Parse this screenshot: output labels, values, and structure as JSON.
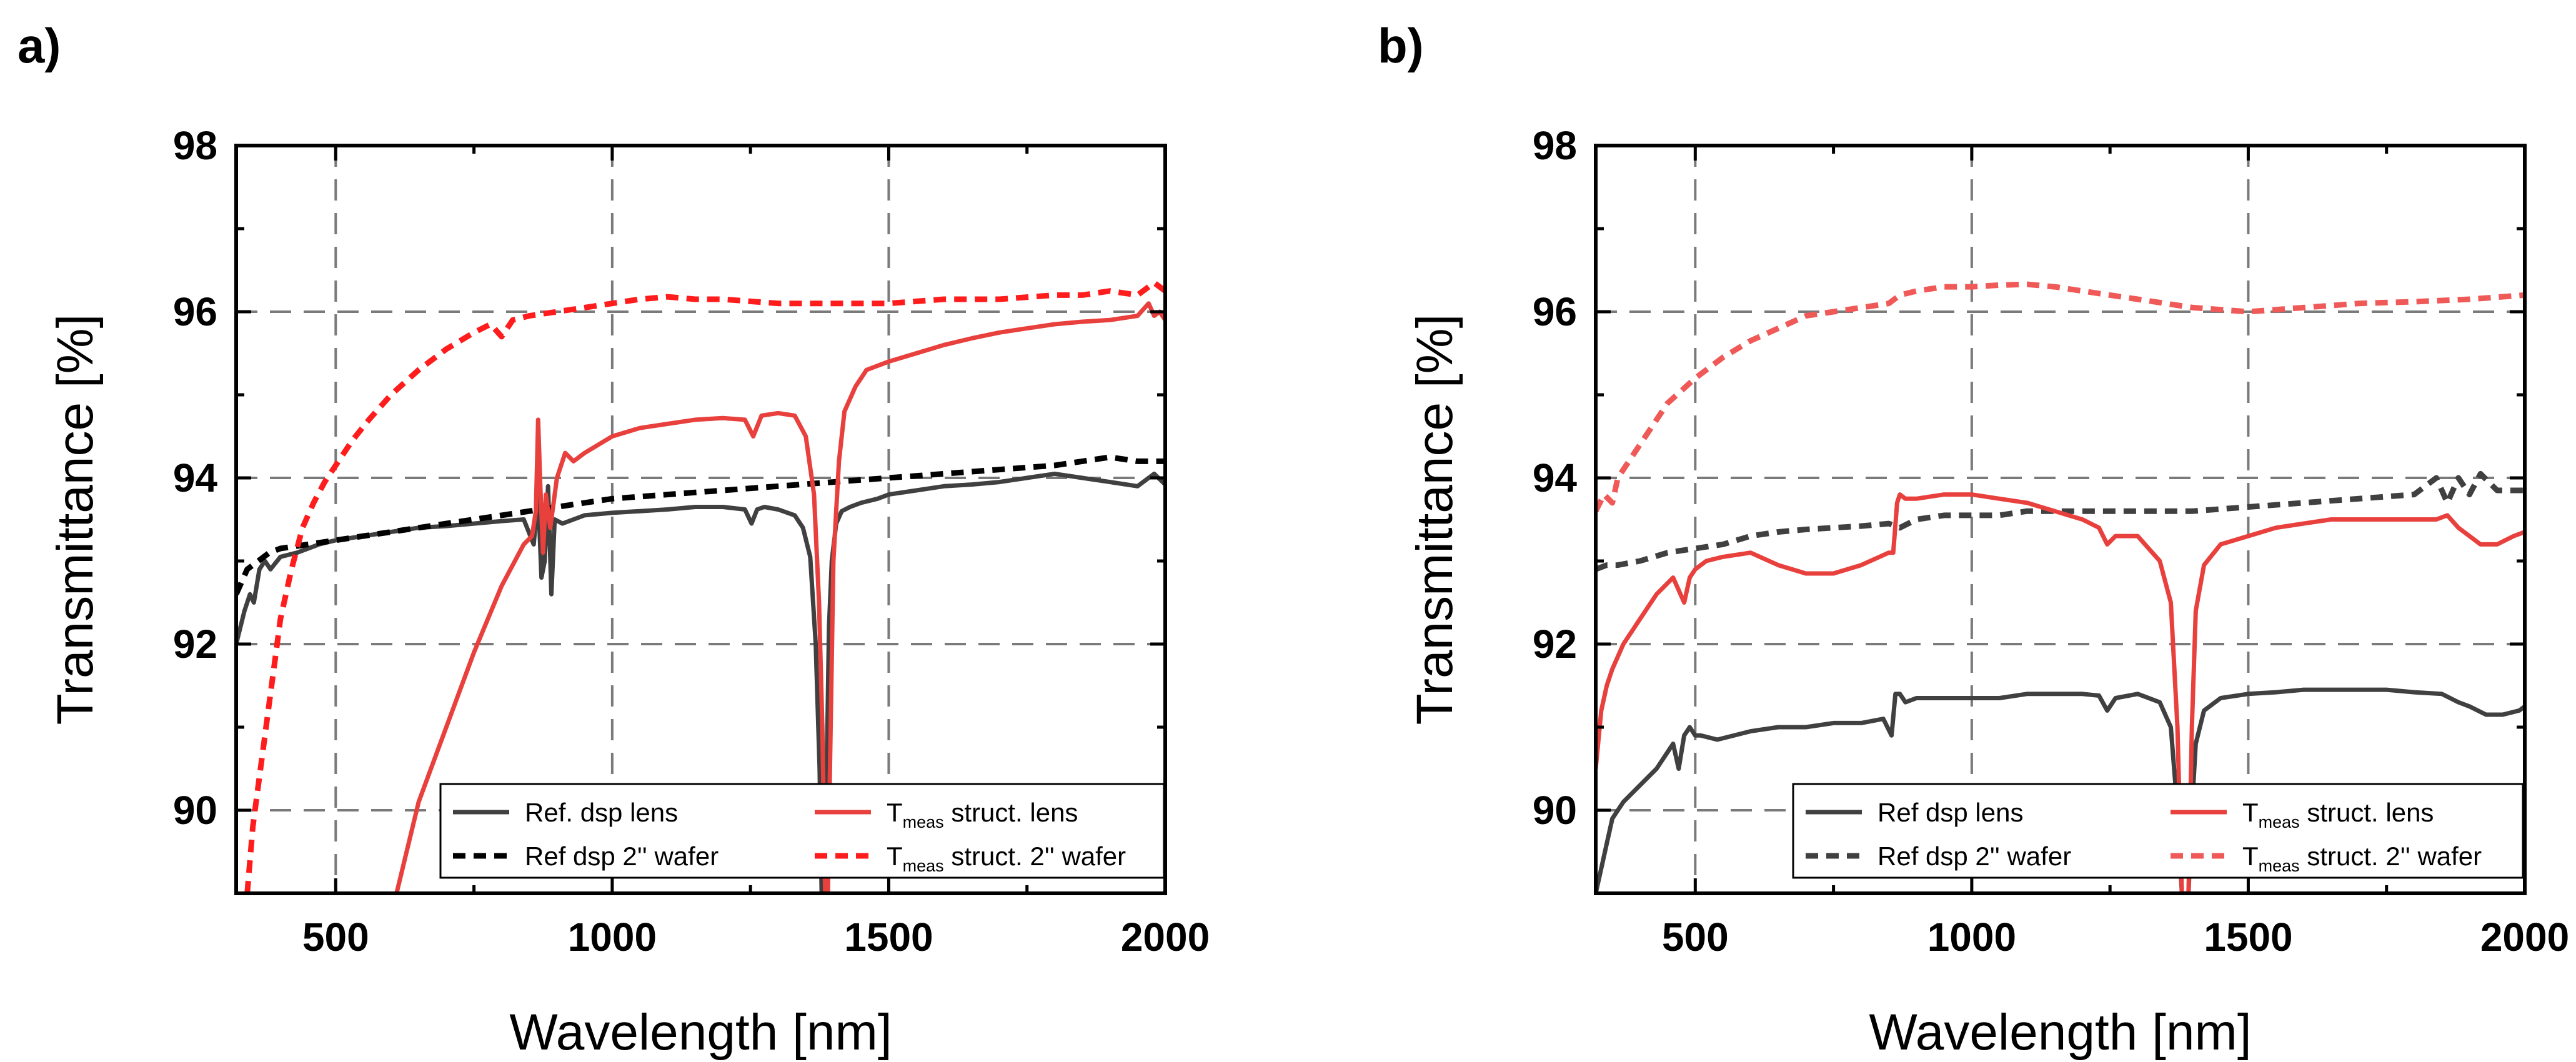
{
  "chart_data": [
    {
      "panel_label": "a)",
      "type": "line",
      "xlabel": "Wavelength [nm]",
      "ylabel": "Transmittance [%]",
      "xlim": [
        320,
        2000
      ],
      "ylim": [
        89,
        98
      ],
      "xticks": [
        500,
        1000,
        1500,
        2000
      ],
      "yticks": [
        90,
        92,
        94,
        96,
        98
      ],
      "grid": true,
      "legend_position": "bottom-right",
      "series": [
        {
          "name": "Ref. dsp lens",
          "legend_main": "Ref. dsp lens",
          "legend_sub": "",
          "legend_tail": "",
          "color": "#404040",
          "dash": "solid",
          "x": [
            320,
            335,
            345,
            352,
            362,
            372,
            382,
            400,
            430,
            470,
            500,
            550,
            600,
            650,
            700,
            750,
            800,
            840,
            858,
            866,
            872,
            878,
            884,
            890,
            896,
            910,
            950,
            1000,
            1050,
            1100,
            1150,
            1200,
            1240,
            1252,
            1262,
            1275,
            1300,
            1330,
            1345,
            1358,
            1368,
            1375,
            1380,
            1384,
            1388,
            1392,
            1397,
            1405,
            1415,
            1430,
            1450,
            1480,
            1500,
            1550,
            1600,
            1650,
            1700,
            1750,
            1800,
            1850,
            1900,
            1950,
            1980,
            2000
          ],
          "y": [
            92.0,
            92.4,
            92.6,
            92.5,
            92.9,
            93.0,
            92.9,
            93.05,
            93.1,
            93.2,
            93.25,
            93.3,
            93.35,
            93.4,
            93.42,
            93.45,
            93.48,
            93.5,
            93.2,
            93.8,
            92.8,
            93.0,
            93.9,
            92.6,
            93.5,
            93.45,
            93.55,
            93.58,
            93.6,
            93.62,
            93.65,
            93.65,
            93.62,
            93.45,
            93.62,
            93.65,
            93.62,
            93.55,
            93.4,
            93.05,
            92.0,
            90.5,
            88.5,
            89.0,
            90.5,
            92.2,
            93.0,
            93.45,
            93.6,
            93.65,
            93.7,
            93.75,
            93.8,
            93.85,
            93.9,
            93.92,
            93.95,
            94.0,
            94.05,
            94.0,
            93.95,
            93.9,
            94.05,
            93.92
          ]
        },
        {
          "name": "Ref dsp 2'' wafer",
          "legend_main": "Ref dsp 2'' wafer",
          "legend_sub": "",
          "legend_tail": "",
          "color": "#000000",
          "dash": "dashed",
          "x": [
            320,
            340,
            360,
            380,
            400,
            450,
            500,
            550,
            600,
            650,
            700,
            750,
            800,
            850,
            900,
            950,
            1000,
            1100,
            1200,
            1300,
            1400,
            1500,
            1600,
            1700,
            1800,
            1850,
            1900,
            1950,
            2000
          ],
          "y": [
            92.6,
            92.9,
            93.0,
            93.1,
            93.15,
            93.2,
            93.25,
            93.3,
            93.35,
            93.4,
            93.45,
            93.5,
            93.55,
            93.6,
            93.65,
            93.7,
            93.75,
            93.8,
            93.85,
            93.9,
            93.95,
            94.0,
            94.05,
            94.1,
            94.15,
            94.2,
            94.25,
            94.2,
            94.2
          ]
        },
        {
          "name": "Tmeas struct. lens",
          "legend_main": "T",
          "legend_sub": "meas",
          "legend_tail": " struct. lens",
          "color": "#e8403d",
          "dash": "solid",
          "x": [
            610,
            650,
            700,
            750,
            800,
            840,
            855,
            862,
            866,
            870,
            875,
            880,
            888,
            900,
            915,
            930,
            950,
            1000,
            1050,
            1100,
            1150,
            1200,
            1240,
            1255,
            1270,
            1300,
            1330,
            1350,
            1365,
            1374,
            1380,
            1385,
            1390,
            1395,
            1400,
            1410,
            1420,
            1440,
            1460,
            1500,
            1550,
            1600,
            1650,
            1700,
            1750,
            1800,
            1850,
            1900,
            1950,
            1970,
            1980,
            1990,
            2000
          ],
          "y": [
            89.0,
            90.1,
            91.0,
            91.9,
            92.7,
            93.2,
            93.3,
            93.6,
            94.7,
            93.9,
            93.1,
            93.8,
            93.4,
            94.0,
            94.3,
            94.2,
            94.3,
            94.5,
            94.6,
            94.65,
            94.7,
            94.72,
            94.7,
            94.5,
            94.75,
            94.78,
            94.75,
            94.5,
            93.8,
            92.5,
            91.0,
            89.0,
            89.0,
            91.0,
            93.0,
            94.2,
            94.8,
            95.1,
            95.3,
            95.4,
            95.5,
            95.6,
            95.68,
            95.75,
            95.8,
            95.85,
            95.88,
            95.9,
            95.95,
            96.1,
            95.95,
            96.0,
            95.9
          ]
        },
        {
          "name": "Tmeas struct. 2'' wafer",
          "legend_main": "T",
          "legend_sub": "meas",
          "legend_tail": " struct. 2'' wafer",
          "color": "#ff1c1c",
          "dash": "dashed",
          "x": [
            340,
            350,
            360,
            370,
            380,
            390,
            400,
            420,
            440,
            460,
            480,
            500,
            530,
            560,
            600,
            650,
            700,
            750,
            780,
            800,
            820,
            850,
            900,
            950,
            1000,
            1050,
            1100,
            1150,
            1200,
            1300,
            1400,
            1500,
            1600,
            1700,
            1800,
            1850,
            1900,
            1950,
            1980,
            2000
          ],
          "y": [
            89.0,
            89.8,
            90.3,
            90.8,
            91.3,
            91.8,
            92.3,
            92.9,
            93.4,
            93.7,
            93.95,
            94.15,
            94.45,
            94.7,
            95.0,
            95.3,
            95.55,
            95.75,
            95.85,
            95.7,
            95.9,
            95.95,
            96.0,
            96.05,
            96.1,
            96.15,
            96.18,
            96.15,
            96.15,
            96.1,
            96.1,
            96.1,
            96.15,
            96.15,
            96.2,
            96.2,
            96.25,
            96.2,
            96.35,
            96.25
          ]
        }
      ]
    },
    {
      "panel_label": "b)",
      "type": "line",
      "xlabel": "Wavelength [nm]",
      "ylabel": "Transmittance [%]",
      "xlim": [
        320,
        2000
      ],
      "ylim": [
        89,
        98
      ],
      "xticks": [
        500,
        1000,
        1500,
        2000
      ],
      "yticks": [
        90,
        92,
        94,
        96,
        98
      ],
      "grid": true,
      "legend_position": "bottom-right",
      "series": [
        {
          "name": "Ref dsp lens",
          "legend_main": "Ref dsp lens",
          "legend_sub": "",
          "legend_tail": "",
          "color": "#404040",
          "dash": "solid",
          "x": [
            320,
            330,
            340,
            350,
            370,
            400,
            430,
            460,
            470,
            480,
            490,
            500,
            510,
            540,
            600,
            650,
            700,
            750,
            800,
            840,
            855,
            862,
            870,
            880,
            900,
            950,
            1000,
            1050,
            1100,
            1150,
            1200,
            1230,
            1245,
            1260,
            1300,
            1340,
            1360,
            1372,
            1380,
            1386,
            1392,
            1398,
            1405,
            1420,
            1450,
            1500,
            1550,
            1600,
            1650,
            1700,
            1750,
            1800,
            1850,
            1880,
            1900,
            1930,
            1960,
            1990,
            2000
          ],
          "y": [
            89.0,
            89.3,
            89.6,
            89.9,
            90.1,
            90.3,
            90.5,
            90.8,
            90.5,
            90.9,
            91.0,
            90.9,
            90.9,
            90.85,
            90.95,
            91.0,
            91.0,
            91.05,
            91.05,
            91.1,
            90.9,
            91.4,
            91.4,
            91.3,
            91.35,
            91.35,
            91.35,
            91.35,
            91.4,
            91.4,
            91.4,
            91.38,
            91.2,
            91.35,
            91.4,
            91.3,
            91.0,
            90.0,
            89.0,
            89.0,
            89.0,
            90.0,
            90.8,
            91.2,
            91.35,
            91.4,
            91.42,
            91.45,
            91.45,
            91.45,
            91.45,
            91.42,
            91.4,
            91.3,
            91.25,
            91.15,
            91.15,
            91.2,
            91.25
          ]
        },
        {
          "name": "Ref dsp 2'' wafer",
          "legend_main": "Ref dsp 2'' wafer",
          "legend_sub": "",
          "legend_tail": "",
          "color": "#404040",
          "dash": "dashed",
          "x": [
            320,
            340,
            360,
            400,
            450,
            500,
            550,
            600,
            650,
            700,
            750,
            800,
            850,
            870,
            900,
            950,
            1000,
            1050,
            1100,
            1200,
            1300,
            1400,
            1500,
            1600,
            1700,
            1800,
            1840,
            1860,
            1880,
            1900,
            1920,
            1950,
            2000
          ],
          "y": [
            92.9,
            92.95,
            92.95,
            93.0,
            93.1,
            93.15,
            93.2,
            93.3,
            93.35,
            93.38,
            93.4,
            93.42,
            93.45,
            93.4,
            93.5,
            93.55,
            93.55,
            93.55,
            93.6,
            93.6,
            93.6,
            93.6,
            93.65,
            93.7,
            93.75,
            93.8,
            94.0,
            93.7,
            94.0,
            93.8,
            94.05,
            93.85,
            93.85
          ]
        },
        {
          "name": "Tmeas struct. lens",
          "legend_main": "T",
          "legend_sub": "meas",
          "legend_tail": " struct. lens",
          "color": "#e8403d",
          "dash": "solid",
          "x": [
            320,
            330,
            340,
            350,
            370,
            400,
            430,
            460,
            480,
            490,
            500,
            520,
            550,
            600,
            650,
            700,
            750,
            800,
            850,
            858,
            865,
            870,
            880,
            900,
            950,
            1000,
            1050,
            1100,
            1150,
            1200,
            1230,
            1245,
            1260,
            1300,
            1340,
            1360,
            1372,
            1380,
            1386,
            1392,
            1398,
            1405,
            1420,
            1450,
            1500,
            1550,
            1600,
            1650,
            1700,
            1750,
            1800,
            1840,
            1860,
            1880,
            1900,
            1920,
            1950,
            1980,
            2000
          ],
          "y": [
            90.5,
            91.2,
            91.5,
            91.7,
            92.0,
            92.3,
            92.6,
            92.8,
            92.5,
            92.8,
            92.9,
            93.0,
            93.05,
            93.1,
            92.95,
            92.85,
            92.85,
            92.95,
            93.1,
            93.1,
            93.7,
            93.8,
            93.75,
            93.75,
            93.8,
            93.8,
            93.75,
            93.7,
            93.6,
            93.5,
            93.4,
            93.2,
            93.3,
            93.3,
            93.0,
            92.5,
            91.0,
            89.0,
            89.0,
            89.0,
            91.0,
            92.4,
            92.95,
            93.2,
            93.3,
            93.4,
            93.45,
            93.5,
            93.5,
            93.5,
            93.5,
            93.5,
            93.55,
            93.4,
            93.3,
            93.2,
            93.2,
            93.3,
            93.35
          ]
        },
        {
          "name": "Tmeas struct. 2'' wafer",
          "legend_main": "T",
          "legend_sub": "meas",
          "legend_tail": " struct. 2'' wafer",
          "color": "#ef5a58",
          "dash": "dashed",
          "x": [
            320,
            335,
            350,
            360,
            380,
            400,
            420,
            450,
            500,
            550,
            600,
            650,
            700,
            750,
            800,
            850,
            870,
            900,
            950,
            1000,
            1050,
            1100,
            1150,
            1200,
            1300,
            1400,
            1500,
            1600,
            1700,
            1800,
            1900,
            2000
          ],
          "y": [
            93.6,
            93.8,
            93.7,
            94.0,
            94.2,
            94.4,
            94.6,
            94.9,
            95.2,
            95.45,
            95.65,
            95.8,
            95.95,
            96.0,
            96.05,
            96.1,
            96.2,
            96.25,
            96.3,
            96.3,
            96.32,
            96.33,
            96.3,
            96.25,
            96.15,
            96.05,
            96.0,
            96.05,
            96.1,
            96.12,
            96.15,
            96.2
          ]
        }
      ]
    }
  ]
}
